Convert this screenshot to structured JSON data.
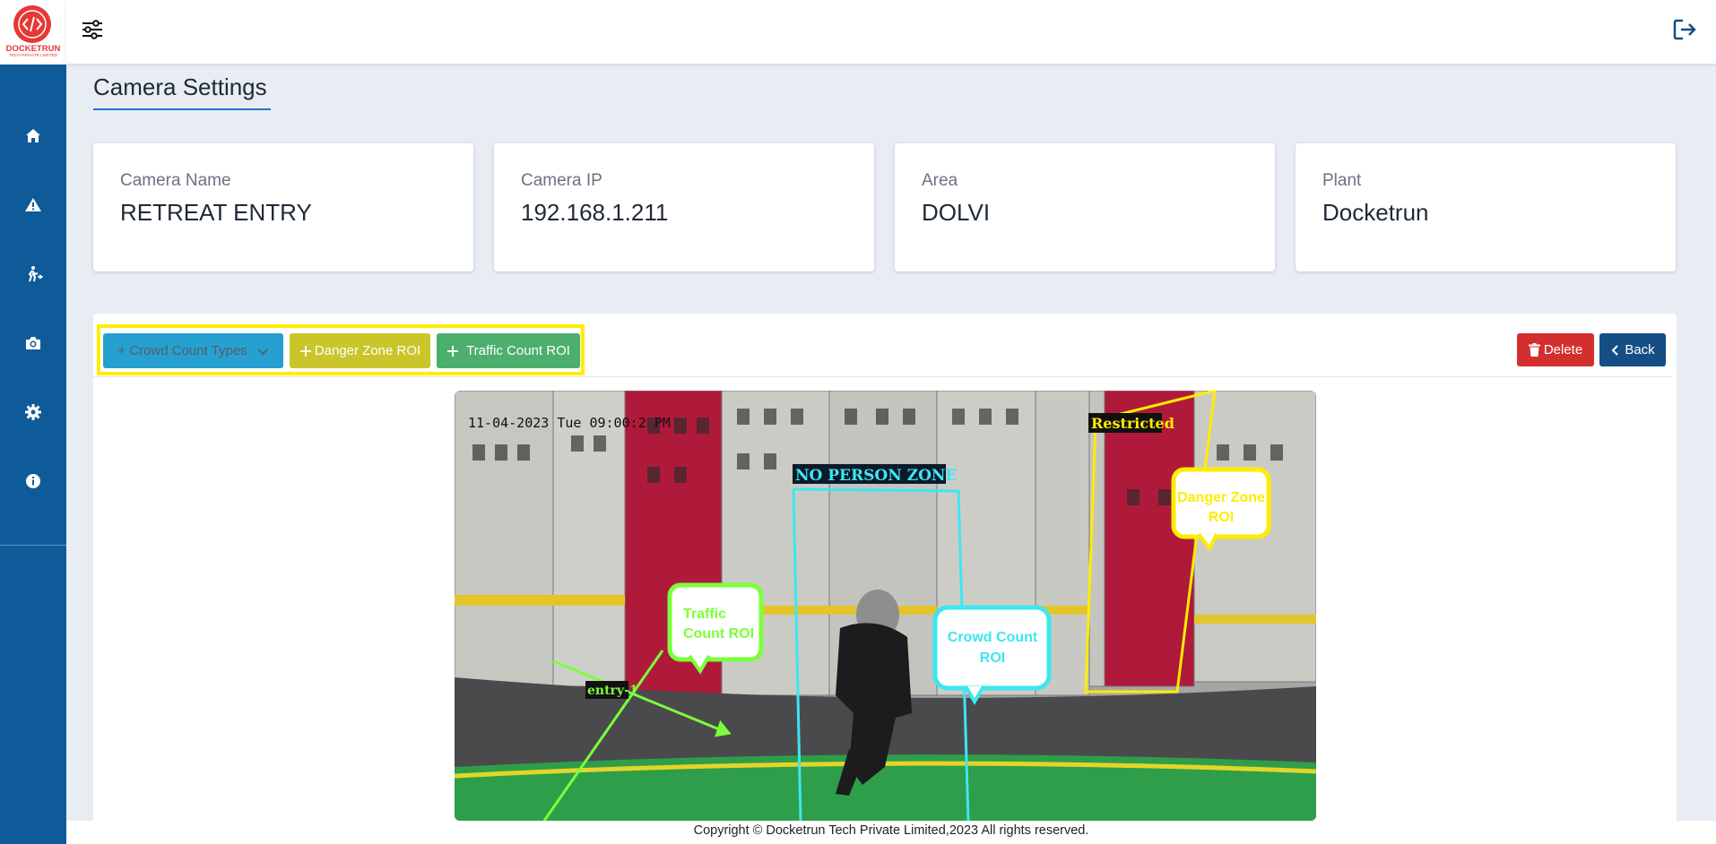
{
  "brand": {
    "name": "DOCKETRUN",
    "subtitle": "TECH PRIVATE LIMITED",
    "color": "#e53935"
  },
  "sidebar": {
    "items": [
      {
        "icon": "home-icon"
      },
      {
        "icon": "warning-icon"
      },
      {
        "icon": "running-person-icon"
      },
      {
        "icon": "camera-icon"
      },
      {
        "icon": "gear-icon"
      },
      {
        "icon": "info-icon"
      }
    ],
    "background": "#0f5a99"
  },
  "header": {
    "left_icon": "sliders-icon",
    "right_icon": "logout-icon"
  },
  "page": {
    "title": "Camera Settings"
  },
  "cards": [
    {
      "label": "Camera Name",
      "value": "RETREAT ENTRY"
    },
    {
      "label": "Camera IP",
      "value": "192.168.1.211"
    },
    {
      "label": "Area",
      "value": "DOLVI"
    },
    {
      "label": "Plant",
      "value": "Docketrun"
    }
  ],
  "toolbar": {
    "crowd_count_label": "+ Crowd Count Types",
    "danger_zone_label": "Danger Zone ROI",
    "traffic_count_label": "Traffic Count ROI",
    "delete_label": "Delete",
    "back_label": "Back"
  },
  "camera_view": {
    "timestamp": "11-04-2023 Tue 09:00:2 PM",
    "overlays": {
      "no_person_zone": "NO PERSON ZONE",
      "restricted": "Restricted",
      "entry": "entry-1",
      "danger_zone_callout": [
        "Danger Zone",
        "ROI"
      ],
      "traffic_count_callout": [
        "Traffic",
        "Count ROI"
      ],
      "crowd_count_callout": [
        "Crowd Count",
        "ROI"
      ]
    },
    "colors": {
      "danger": "#ffec00",
      "traffic": "#7bff3a",
      "crowd": "#3ee6f0"
    }
  },
  "footer": {
    "text": "Copyright © Docketrun Tech Private Limited,2023 All rights reserved."
  }
}
